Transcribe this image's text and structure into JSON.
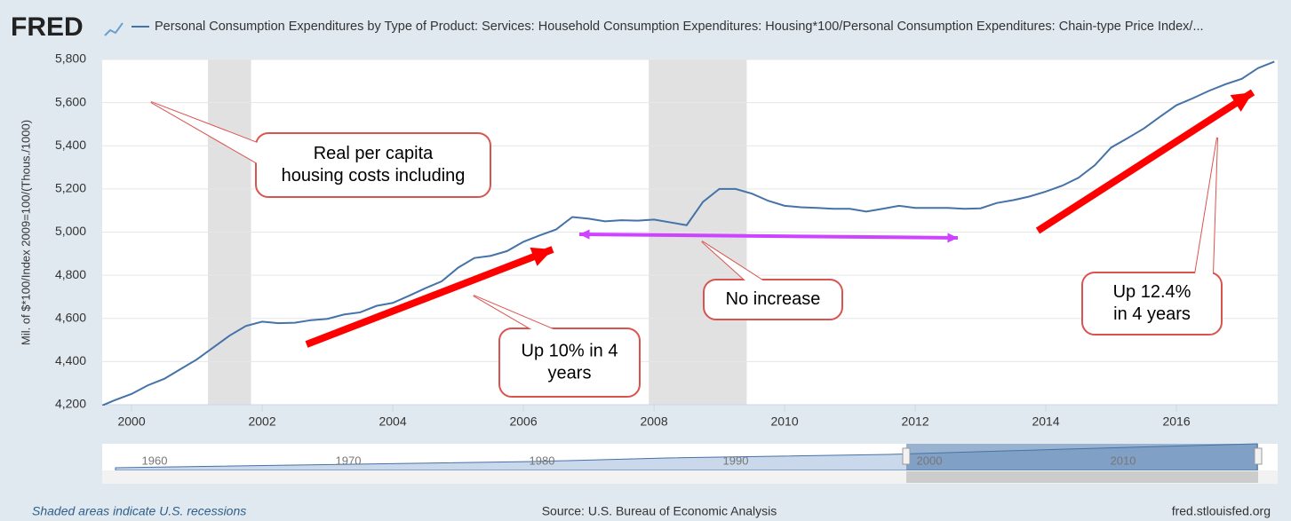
{
  "logo": "FRED",
  "chart_data": {
    "type": "line",
    "title": "Personal Consumption Expenditures by Type of Product: Services: Household Consumption Expenditures: Housing*100/Personal Consumption Expenditures: Chain-type Price Index/...",
    "y_label": "Mil. of $*100/Index 2009=100/(Thous./1000)",
    "x": [
      1999.5,
      1999.75,
      2000,
      2000.25,
      2000.5,
      2000.75,
      2001,
      2001.25,
      2001.5,
      2001.75,
      2002,
      2002.25,
      2002.5,
      2002.75,
      2003,
      2003.25,
      2003.5,
      2003.75,
      2004,
      2004.25,
      2004.5,
      2004.75,
      2005,
      2005.25,
      2005.5,
      2005.75,
      2006,
      2006.25,
      2006.5,
      2006.75,
      2007,
      2007.25,
      2007.5,
      2007.75,
      2008,
      2008.25,
      2008.5,
      2008.75,
      2009,
      2009.25,
      2009.5,
      2009.75,
      2010,
      2010.25,
      2010.5,
      2010.75,
      2011,
      2011.25,
      2011.5,
      2011.75,
      2012,
      2012.25,
      2012.5,
      2012.75,
      2013,
      2013.25,
      2013.5,
      2013.75,
      2014,
      2014.25,
      2014.5,
      2014.75,
      2015,
      2015.25,
      2015.5,
      2015.75,
      2016,
      2016.25,
      2016.5,
      2016.75,
      2017,
      2017.25,
      2017.5
    ],
    "series": [
      {
        "color": "#4572a7",
        "values": [
          4190,
          4222,
          4250,
          4290,
          4320,
          4365,
          4410,
          4465,
          4520,
          4565,
          4585,
          4578,
          4580,
          4592,
          4598,
          4618,
          4628,
          4658,
          4672,
          4705,
          4740,
          4772,
          4835,
          4880,
          4890,
          4912,
          4955,
          4985,
          5012,
          5070,
          5062,
          5050,
          5055,
          5053,
          5058,
          5045,
          5032,
          5140,
          5200,
          5200,
          5178,
          5145,
          5122,
          5115,
          5112,
          5108,
          5108,
          5095,
          5108,
          5122,
          5112,
          5112,
          5112,
          5108,
          5110,
          5135,
          5148,
          5165,
          5188,
          5215,
          5252,
          5310,
          5392,
          5435,
          5480,
          5535,
          5588,
          5620,
          5655,
          5685,
          5710,
          5760,
          5790
        ]
      }
    ],
    "recessions": [
      [
        2001.17,
        2001.83
      ],
      [
        2007.92,
        2009.42
      ]
    ],
    "xlim": [
      1999.55,
      2017.55
    ],
    "xticks": [
      2000,
      2002,
      2004,
      2006,
      2008,
      2010,
      2012,
      2014,
      2016
    ],
    "ylim": [
      4200,
      5800
    ],
    "yticks": [
      {
        "value": 4200,
        "label": "4,200"
      },
      {
        "value": 4400,
        "label": "4,400"
      },
      {
        "value": 4600,
        "label": "4,600"
      },
      {
        "value": 4800,
        "label": "4,800"
      },
      {
        "value": 5000,
        "label": "5,000"
      },
      {
        "value": 5200,
        "label": "5,200"
      },
      {
        "value": 5400,
        "label": "5,400"
      },
      {
        "value": 5600,
        "label": "5,600"
      },
      {
        "value": 5800,
        "label": "5,800"
      }
    ],
    "grid": true,
    "annotations": [
      {
        "lines": [
          "Real per capita",
          "housing costs including"
        ]
      },
      {
        "lines": [
          "Up 10% in 4",
          "years"
        ]
      },
      {
        "lines": [
          "No increase"
        ]
      },
      {
        "lines": [
          "Up 12.4%",
          "in 4 years"
        ]
      }
    ],
    "navigator_ticks": [
      1960,
      1970,
      1980,
      1990,
      2000,
      2010
    ]
  },
  "footer": {
    "note": "Shaded areas indicate U.S. recessions",
    "source": "Source: U.S. Bureau of Economic Analysis",
    "site": "fred.stlouisfed.org"
  }
}
